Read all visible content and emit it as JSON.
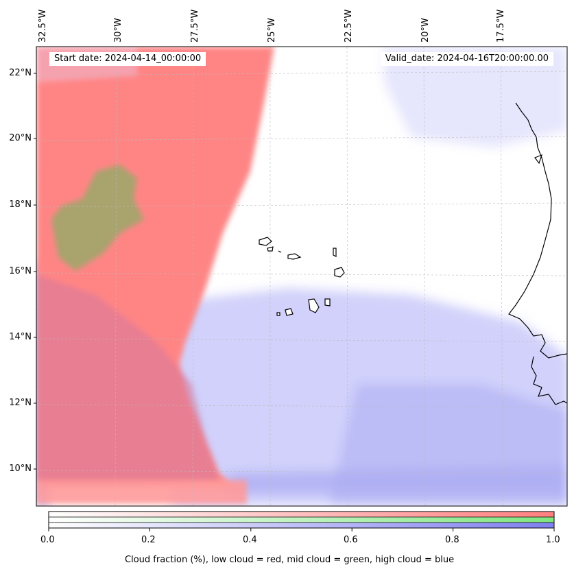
{
  "map": {
    "start_date": "Start date: 2024-04-14_00:00:00",
    "valid_date": "Valid_date: 2024-04-16T20:00:00.00",
    "lon_labels": [
      "32.5°W",
      "30°W",
      "27.5°W",
      "25°W",
      "22.5°W",
      "20°W",
      "17.5°W"
    ],
    "lat_labels": [
      "22°N",
      "20°N",
      "18°N",
      "16°N",
      "14°N",
      "12°N",
      "10°N"
    ],
    "islands": "Cape Verde islands",
    "coastline": "West African coastline",
    "colors": {
      "low_cloud": "#ff8080",
      "mid_cloud": "#80e080",
      "high_cloud": "#8080ff",
      "coast": "#000000",
      "grid": "#bbbbbb"
    }
  },
  "colorbar": {
    "ticks": [
      "0.0",
      "0.2",
      "0.4",
      "0.6",
      "0.8",
      "1.0"
    ],
    "tick_values": [
      0.0,
      0.2,
      0.4,
      0.6,
      0.8,
      1.0
    ],
    "caption": "Cloud fraction (%), low cloud = red, mid cloud = green, high cloud = blue",
    "bands": [
      "low cloud (red)",
      "mid cloud (green)",
      "high cloud (blue)"
    ]
  }
}
